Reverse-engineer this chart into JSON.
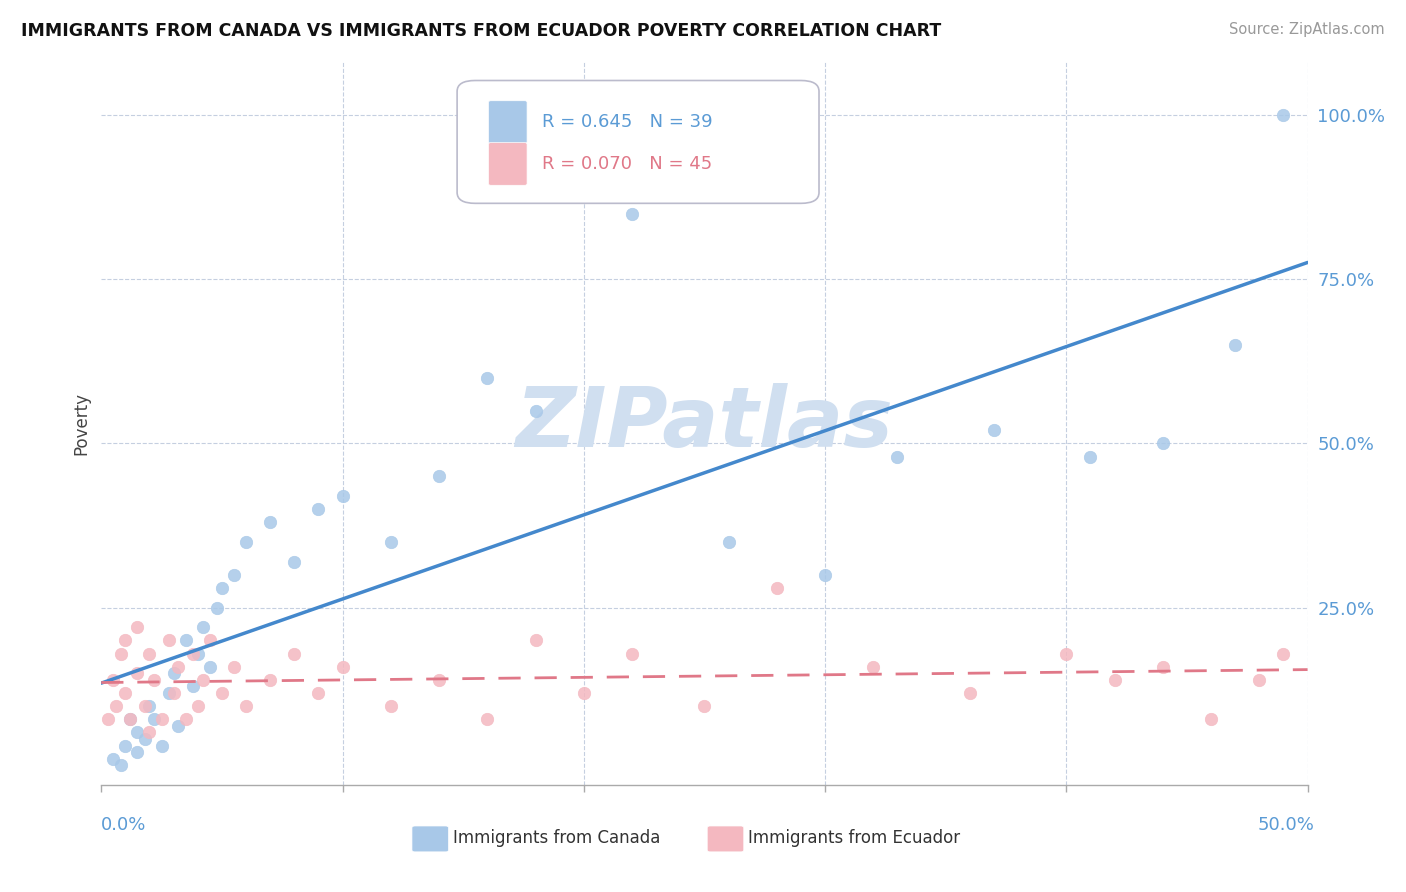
{
  "title": "IMMIGRANTS FROM CANADA VS IMMIGRANTS FROM ECUADOR POVERTY CORRELATION CHART",
  "source_text": "Source: ZipAtlas.com",
  "xlim": [
    0.0,
    0.5
  ],
  "ylim": [
    -0.02,
    1.08
  ],
  "ylabel_ticks": [
    0.0,
    0.25,
    0.5,
    0.75,
    1.0
  ],
  "ylabel_tick_labels": [
    "",
    "25.0%",
    "50.0%",
    "75.0%",
    "100.0%"
  ],
  "canada_R": 0.645,
  "canada_N": 39,
  "ecuador_R": 0.07,
  "ecuador_N": 45,
  "canada_color": "#a8c8e8",
  "ecuador_color": "#f4b8c0",
  "canada_line_color": "#4488cc",
  "ecuador_line_color": "#e07888",
  "watermark_text": "ZIPatlas",
  "watermark_color": "#d0dff0",
  "legend_label_canada": "Immigrants from Canada",
  "legend_label_ecuador": "Immigrants from Ecuador",
  "canada_x": [
    0.005,
    0.008,
    0.01,
    0.012,
    0.015,
    0.015,
    0.018,
    0.02,
    0.022,
    0.025,
    0.028,
    0.03,
    0.032,
    0.035,
    0.038,
    0.04,
    0.042,
    0.045,
    0.048,
    0.05,
    0.055,
    0.06,
    0.07,
    0.08,
    0.09,
    0.1,
    0.12,
    0.14,
    0.16,
    0.18,
    0.22,
    0.26,
    0.3,
    0.33,
    0.37,
    0.41,
    0.44,
    0.47,
    0.49
  ],
  "canada_y": [
    0.02,
    0.01,
    0.04,
    0.08,
    0.03,
    0.06,
    0.05,
    0.1,
    0.08,
    0.04,
    0.12,
    0.15,
    0.07,
    0.2,
    0.13,
    0.18,
    0.22,
    0.16,
    0.25,
    0.28,
    0.3,
    0.35,
    0.38,
    0.32,
    0.4,
    0.42,
    0.35,
    0.45,
    0.6,
    0.55,
    0.85,
    0.35,
    0.3,
    0.48,
    0.52,
    0.48,
    0.5,
    0.65,
    1.0
  ],
  "ecuador_x": [
    0.003,
    0.005,
    0.006,
    0.008,
    0.01,
    0.01,
    0.012,
    0.015,
    0.015,
    0.018,
    0.02,
    0.02,
    0.022,
    0.025,
    0.028,
    0.03,
    0.032,
    0.035,
    0.038,
    0.04,
    0.042,
    0.045,
    0.05,
    0.055,
    0.06,
    0.07,
    0.08,
    0.09,
    0.1,
    0.12,
    0.14,
    0.16,
    0.18,
    0.2,
    0.22,
    0.25,
    0.28,
    0.32,
    0.36,
    0.4,
    0.42,
    0.44,
    0.46,
    0.48,
    0.49
  ],
  "ecuador_y": [
    0.08,
    0.14,
    0.1,
    0.18,
    0.12,
    0.2,
    0.08,
    0.15,
    0.22,
    0.1,
    0.06,
    0.18,
    0.14,
    0.08,
    0.2,
    0.12,
    0.16,
    0.08,
    0.18,
    0.1,
    0.14,
    0.2,
    0.12,
    0.16,
    0.1,
    0.14,
    0.18,
    0.12,
    0.16,
    0.1,
    0.14,
    0.08,
    0.2,
    0.12,
    0.18,
    0.1,
    0.28,
    0.16,
    0.12,
    0.18,
    0.14,
    0.16,
    0.08,
    0.14,
    0.18
  ]
}
